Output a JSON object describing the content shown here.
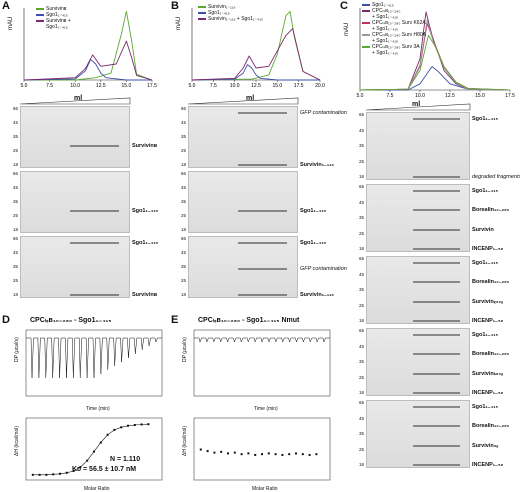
{
  "panels": {
    "A": {
      "label": "A",
      "ylabel": "mAU",
      "xlabel": "ml",
      "legend": [
        "Survivinʙ",
        "Sgo1₁₋₄₁₅",
        "Survivinʙ +",
        "Sgo1₁₋₄₁₅"
      ],
      "xticks": [
        "5.0",
        "7.5",
        "10.0",
        "12.5",
        "15.0",
        "17.5"
      ],
      "gel_header": "ml",
      "gels": [
        {
          "kd": [
            "66",
            "45",
            "35",
            "25",
            "18"
          ],
          "bands": [
            {
              "text": "Survivinʙ"
            }
          ]
        },
        {
          "kd": [
            "66",
            "45",
            "35",
            "25",
            "18"
          ],
          "bands": [
            {
              "text": "Sgo1₁₋₄₁₅"
            }
          ]
        },
        {
          "kd": [
            "66",
            "45",
            "35",
            "25",
            "18"
          ],
          "bands": [
            {
              "text": "Sgo1₁₋₄₁₅"
            },
            {
              "text": "Survivinʙ"
            }
          ]
        }
      ]
    },
    "B": {
      "label": "B",
      "ylabel": "mAU",
      "xlabel": "ml",
      "legend": [
        "Survivin₁₋₁₁₆",
        "Sgo1₁₋₄₁₅",
        "Survivin₁₋₁₁₆ + Sgo1₁₋₄₁₅"
      ],
      "xticks": [
        "5.0",
        "7.5",
        "10.0",
        "12.5",
        "15.0",
        "17.5",
        "20.0"
      ],
      "gels": [
        {
          "kd": [
            "66",
            "45",
            "35",
            "25",
            "18"
          ],
          "bands": [
            {
              "text": "GFP contamination"
            },
            {
              "text": "Survivin₁₋₁₁₆"
            }
          ]
        },
        {
          "kd": [
            "66",
            "45",
            "35",
            "25",
            "18"
          ],
          "bands": [
            {
              "text": "Sgo1₁₋₄₁₅"
            }
          ]
        },
        {
          "kd": [
            "66",
            "45",
            "35",
            "25",
            "18"
          ],
          "bands": [
            {
              "text": "Sgo1₁₋₄₁₅"
            },
            {
              "text": "GFP contamination"
            },
            {
              "text": "Survivin₁₋₁₁₆"
            }
          ]
        }
      ]
    },
    "C": {
      "label": "C",
      "ylabel": "mAU",
      "xlabel": "ml",
      "legend": [
        "Sgo1₁₋₄₁₅",
        "CPCₗₛʙ₁₀₋₂₈₀",
        "+ Sgo1₁₋₄₁₅",
        "CPCₗₛʙ₁₀₋₂₈₀ Surv K62A",
        "+ Sgo1₁₋₄₁₅",
        "CPCₗₛʙ₁₀₋₂₈₀ Surv H80A",
        "+ Sgo1₁₋₄₁₅",
        "CPCₗₛʙ₁₀₋₂₈₀ Surv 3A",
        "+ Sgo1₁₋₄₁₅"
      ],
      "xticks": [
        "5.0",
        "7.5",
        "10.0",
        "12.5",
        "15.0",
        "17.5"
      ],
      "gels": [
        {
          "kd": [
            "66",
            "45",
            "35",
            "25",
            "18"
          ],
          "bands": [
            {
              "text": "Sgo1₁₋₄₁₅"
            },
            {
              "text": "degraded fragments"
            }
          ]
        },
        {
          "kd": [
            "66",
            "45",
            "35",
            "25",
            "18"
          ],
          "bands": [
            {
              "text": "Sgo1₁₋₄₁₅"
            },
            {
              "text": "Borealin₁₀₋₂₈₀"
            },
            {
              "text": "Survivin"
            },
            {
              "text": "INCENP₁₋₅₈"
            }
          ]
        },
        {
          "kd": [
            "66",
            "45",
            "35",
            "25",
            "18"
          ],
          "bands": [
            {
              "text": "Sgo1₁₋₄₁₅"
            },
            {
              "text": "Borealin₁₀₋₂₈₀"
            },
            {
              "text": "Survivinₖ₆₂ₐ"
            },
            {
              "text": "INCENP₁₋₅₈"
            }
          ]
        },
        {
          "kd": [
            "66",
            "45",
            "35",
            "25",
            "18"
          ],
          "bands": [
            {
              "text": "Sgo1₁₋₄₁₅"
            },
            {
              "text": "Borealin₁₀₋₂₈₀"
            },
            {
              "text": "Survivinₕ₈₀ₐ"
            },
            {
              "text": "INCENP₁₋₅₈"
            }
          ]
        },
        {
          "kd": [
            "66",
            "45",
            "35",
            "25",
            "18"
          ],
          "bands": [
            {
              "text": "Sgo1₁₋₄₁₅"
            },
            {
              "text": "Borealin₁₀₋₂₈₀"
            },
            {
              "text": "Survivin₃ₐ"
            },
            {
              "text": "INCENP₁₋₅₈"
            }
          ]
        }
      ]
    },
    "D": {
      "label": "D",
      "title": "CPCₗₛʙ₁₀₋₂₈₀ - Sgo1₁₋₄₁₅",
      "top_ylabel": "DP (µcal/s)",
      "top_xlabel": "Time (min)",
      "bottom_ylabel": "ΔH (kcal/mol)",
      "bottom_xlabel": "Molar Ratio",
      "N": "N = 1.110",
      "Kd": "Kᴅ = 56.5 ± 10.7 nM"
    },
    "E": {
      "label": "E",
      "title": "CPCₗₛʙ₁₀₋₂₈₀ - Sgo1₁₋₄₁₅ Nmut",
      "top_ylabel": "DP (µcal/s)",
      "top_xlabel": "Time (min)",
      "bottom_ylabel": "ΔH (kcal/mol)",
      "bottom_xlabel": "Molar Ratio"
    }
  },
  "colors": {
    "green": "#5aa832",
    "blue": "#3d4fa8",
    "purple": "#7b2a6e",
    "pink": "#c0306a",
    "grey": "#999999"
  },
  "chart_data": [
    {
      "type": "line",
      "panel": "A",
      "xlim": [
        5,
        17.5
      ],
      "series": [
        {
          "name": "Survivinʙ",
          "x": [
            5,
            10,
            12,
            13.5,
            14.5,
            15,
            15.5,
            16,
            17.5
          ],
          "y": [
            0,
            0,
            2,
            6,
            40,
            60,
            35,
            5,
            0
          ]
        },
        {
          "name": "Sgo1₁₋₄₁₅",
          "x": [
            5,
            10,
            11,
            11.5,
            12,
            12.5,
            13,
            15,
            17.5
          ],
          "y": [
            0,
            1,
            8,
            18,
            14,
            6,
            2,
            0,
            0
          ]
        },
        {
          "name": "Survivinʙ + Sgo1₁₋₄₁₅",
          "x": [
            5,
            10,
            11,
            11.7,
            12.5,
            14,
            15,
            15.5,
            16,
            17.5
          ],
          "y": [
            0,
            2,
            10,
            22,
            12,
            14,
            34,
            20,
            4,
            0
          ]
        }
      ]
    },
    {
      "type": "line",
      "panel": "B",
      "xlim": [
        5,
        20
      ],
      "series": [
        {
          "name": "Survivin₁₋₁₁₆",
          "x": [
            5,
            12,
            14,
            15,
            16,
            16.5,
            17,
            18,
            20
          ],
          "y": [
            0,
            1,
            6,
            30,
            75,
            80,
            50,
            10,
            0
          ]
        },
        {
          "name": "Sgo1₁₋₄₁₅",
          "x": [
            5,
            10,
            11,
            11.5,
            12,
            12.5,
            13,
            15,
            20
          ],
          "y": [
            0,
            1,
            8,
            18,
            14,
            6,
            2,
            0,
            0
          ]
        },
        {
          "name": "Survivin₁₋₁₁₆ + Sgo1₁₋₄₁₅",
          "x": [
            5,
            10,
            11,
            11.7,
            12.5,
            14,
            16,
            16.8,
            18,
            20
          ],
          "y": [
            0,
            2,
            14,
            28,
            14,
            16,
            52,
            60,
            10,
            0
          ]
        }
      ]
    },
    {
      "type": "line",
      "panel": "C",
      "xlim": [
        5,
        17.5
      ],
      "series": [
        {
          "name": "Sgo1₁₋₄₁₅",
          "x": [
            5,
            9,
            10,
            11,
            11.5,
            12.5,
            14,
            17.5
          ],
          "y": [
            0,
            0,
            8,
            30,
            24,
            8,
            1,
            0
          ]
        },
        {
          "name": "CPCₗₛʙ₁₀₋₂₈₀ + Sgo1₁₋₄₁₅",
          "x": [
            5,
            9,
            10,
            10.5,
            11,
            12,
            13,
            14,
            17.5
          ],
          "y": [
            0,
            1,
            40,
            100,
            70,
            25,
            8,
            1,
            0
          ]
        },
        {
          "name": "CPCₗₛʙ₁₀₋₂₈₀ Surv K62A + Sgo1₁₋₄₁₅",
          "x": [
            5,
            9,
            10,
            10.6,
            11.2,
            12,
            13,
            14,
            17.5
          ],
          "y": [
            0,
            1,
            30,
            85,
            60,
            30,
            10,
            2,
            0
          ]
        },
        {
          "name": "CPCₗₛʙ₁₀₋₂₈₀ Surv H80A + Sgo1₁₋₄₁₅",
          "x": [
            5,
            9,
            10,
            10.6,
            11.1,
            12,
            13,
            14,
            17.5
          ],
          "y": [
            0,
            1,
            32,
            90,
            62,
            28,
            9,
            1,
            0
          ]
        },
        {
          "name": "CPCₗₛʙ₁₀₋₂₈₀ Surv 3A + Sgo1₁₋₄₁₅",
          "x": [
            5,
            9,
            10,
            10.7,
            11.3,
            12,
            13,
            14,
            17.5
          ],
          "y": [
            0,
            1,
            25,
            70,
            55,
            30,
            10,
            2,
            0
          ]
        }
      ]
    },
    {
      "type": "scatter",
      "panel": "D",
      "xlabel": "Molar Ratio",
      "ylabel": "ΔH (kcal/mol)",
      "xlim": [
        0,
        2
      ],
      "x": [
        0.1,
        0.2,
        0.3,
        0.4,
        0.5,
        0.6,
        0.7,
        0.8,
        0.9,
        1.0,
        1.1,
        1.2,
        1.3,
        1.4,
        1.5,
        1.6,
        1.7,
        1.8
      ],
      "y": [
        -20,
        -20,
        -20,
        -19.8,
        -19.6,
        -19.2,
        -18.5,
        -17,
        -14.5,
        -11,
        -7.5,
        -4.5,
        -2.6,
        -1.6,
        -1,
        -0.7,
        -0.5,
        -0.4
      ]
    },
    {
      "type": "scatter",
      "panel": "E",
      "xlabel": "Molar Ratio",
      "ylabel": "ΔH (kcal/mol)",
      "xlim": [
        0,
        2
      ],
      "x": [
        0.1,
        0.2,
        0.3,
        0.4,
        0.5,
        0.6,
        0.7,
        0.8,
        0.9,
        1.0,
        1.1,
        1.2,
        1.3,
        1.4,
        1.5,
        1.6,
        1.7,
        1.8
      ],
      "y": [
        0.6,
        0.4,
        0.2,
        0.3,
        0.1,
        0.2,
        0.0,
        0.1,
        -0.1,
        0.0,
        0.1,
        0.0,
        -0.1,
        0.0,
        0.1,
        0.0,
        -0.1,
        0.0
      ]
    }
  ]
}
